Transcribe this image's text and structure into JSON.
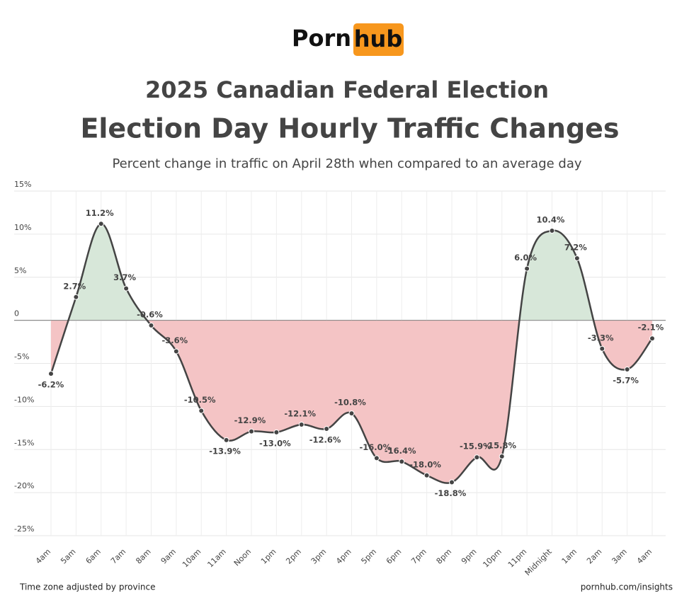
{
  "logo": {
    "left": "Porn",
    "right": "hub"
  },
  "footer": {
    "left": "Time zone adjusted by province",
    "right": "pornhub.com/insights"
  },
  "chart_data": {
    "type": "line",
    "title": "2025 Canadian Federal Election",
    "subtitle": "Election Day Hourly Traffic Changes",
    "description": "Percent change in traffic on April 28th when compared to an average day",
    "categories": [
      "4am",
      "5am",
      "6am",
      "7am",
      "8am",
      "9am",
      "10am",
      "11am",
      "Noon",
      "1pm",
      "2pm",
      "3pm",
      "4pm",
      "5pm",
      "6pm",
      "7pm",
      "8pm",
      "9pm",
      "10pm",
      "11pm",
      "Midnight",
      "1am",
      "2am",
      "3am",
      "4am"
    ],
    "values": [
      -6.2,
      2.7,
      11.2,
      3.7,
      -0.6,
      -3.6,
      -10.5,
      -13.9,
      -12.9,
      -13.0,
      -12.1,
      -12.6,
      -10.8,
      -16.0,
      -16.4,
      -18.0,
      -18.8,
      -15.9,
      -15.8,
      6.0,
      10.4,
      7.2,
      -3.3,
      -5.7,
      -2.1
    ],
    "value_labels": [
      "-6.2%",
      "2.7%",
      "11.2%",
      "3.7%",
      "-0.6%",
      "-3.6%",
      "-10.5%",
      "-13.9%",
      "-12.9%",
      "-13.0%",
      "-12.1%",
      "-12.6%",
      "-10.8%",
      "-16.0%",
      "-16.4%",
      "-18.0%",
      "-18.8%",
      "-15.9%",
      "-15.8%",
      "6.0%",
      "10.4%",
      "7.2%",
      "-3.3%",
      "-5.7%",
      "-2.1%"
    ],
    "color": "#444444",
    "positive_fill": "#d7e7d9",
    "negative_fill": "#f4c4c5",
    "ylim": [
      -25,
      15
    ],
    "yticks": [
      {
        "value": 15,
        "label": "15%"
      },
      {
        "value": 10,
        "label": "10%"
      },
      {
        "value": 5,
        "label": "5%"
      },
      0,
      {
        "value": -5,
        "label": "-5%"
      },
      {
        "value": -10,
        "label": "-10%"
      },
      {
        "value": -15,
        "label": "-15%"
      },
      {
        "value": -20,
        "label": "-20%"
      },
      {
        "value": -25,
        "label": "-25%"
      }
    ],
    "grid": true
  }
}
